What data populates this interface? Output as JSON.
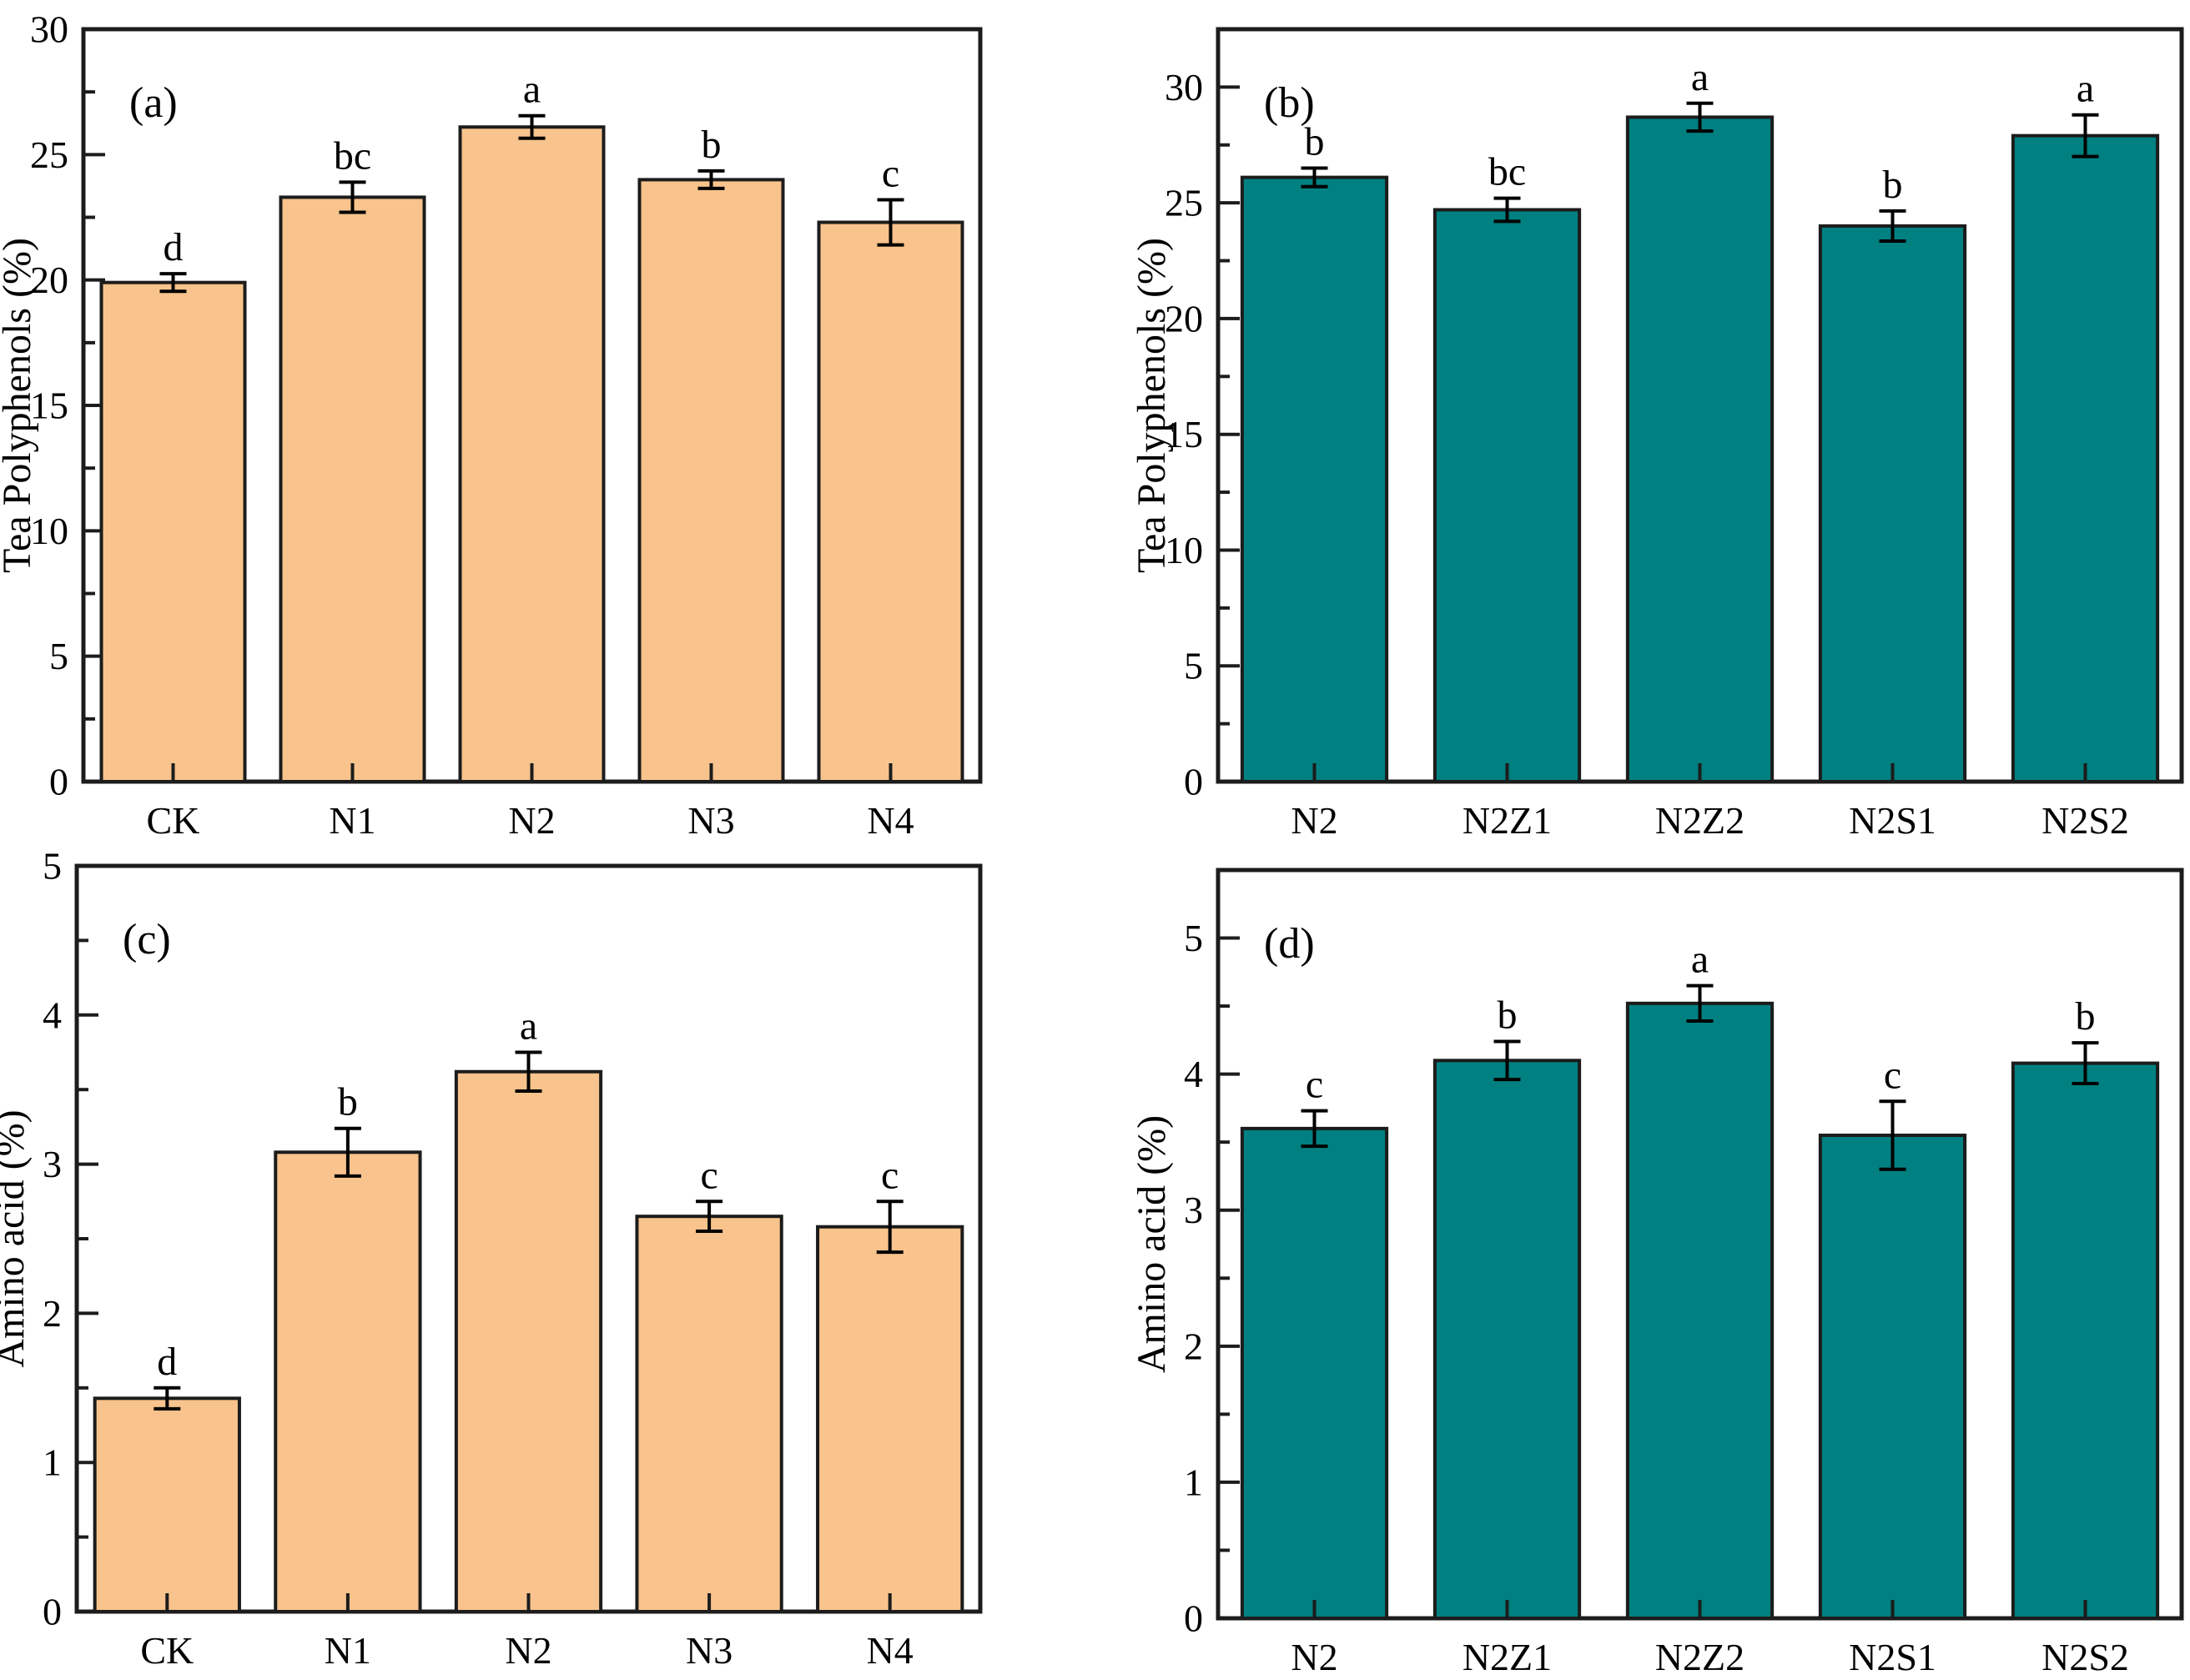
{
  "figure": {
    "background": "#ffffff",
    "text_color": "#000000",
    "frame_color": "#1c1c1c",
    "orange_fill": "#F8C38C",
    "teal_fill": "#008080"
  },
  "chart_data": [
    {
      "id": "a",
      "type": "bar",
      "panel_label": "(a)",
      "ylabel": "Tea Polyphenols (%)",
      "xlabel": "",
      "categories": [
        "CK",
        "N1",
        "N2",
        "N3",
        "N4"
      ],
      "values": [
        19.9,
        23.3,
        26.1,
        24.0,
        22.3
      ],
      "errors": [
        0.35,
        0.6,
        0.45,
        0.35,
        0.9
      ],
      "sig_letters": [
        "d",
        "bc",
        "a",
        "b",
        "c"
      ],
      "bar_color": "#F8C38C",
      "edge_color": "#1c1c1c",
      "ylim": [
        0,
        30
      ],
      "ytick_step": 5,
      "yminor_step": 2.5,
      "ytick_labels": [
        "0",
        "5",
        "10",
        "15",
        "20",
        "25",
        "30"
      ],
      "grid": false,
      "legend": null
    },
    {
      "id": "b",
      "type": "bar",
      "panel_label": "(b)",
      "ylabel": "Tea Polyphenols (%)",
      "xlabel": "",
      "categories": [
        "N2",
        "N2Z1",
        "N2Z2",
        "N2S1",
        "N2S2"
      ],
      "values": [
        26.1,
        24.7,
        28.7,
        24.0,
        27.9
      ],
      "errors": [
        0.4,
        0.5,
        0.6,
        0.65,
        0.9
      ],
      "sig_letters": [
        "b",
        "bc",
        "a",
        "b",
        "a"
      ],
      "bar_color": "#008080",
      "edge_color": "#1c1c1c",
      "ylim": [
        0,
        32.5
      ],
      "ytick_step": 5,
      "yminor_step": 2.5,
      "ytick_labels": [
        "0",
        "5",
        "10",
        "15",
        "20",
        "25",
        "30"
      ],
      "grid": false,
      "legend": null
    },
    {
      "id": "c",
      "type": "bar",
      "panel_label": "(c)",
      "ylabel": "Amino acid (%)",
      "xlabel": "",
      "categories": [
        "CK",
        "N1",
        "N2",
        "N3",
        "N4"
      ],
      "values": [
        1.43,
        3.08,
        3.62,
        2.65,
        2.58
      ],
      "errors": [
        0.07,
        0.16,
        0.13,
        0.1,
        0.17
      ],
      "sig_letters": [
        "d",
        "b",
        "a",
        "c",
        "c"
      ],
      "bar_color": "#F8C38C",
      "edge_color": "#1c1c1c",
      "ylim": [
        0,
        5
      ],
      "ytick_step": 1,
      "yminor_step": 0.5,
      "ytick_labels": [
        "0",
        "1",
        "2",
        "3",
        "4",
        "5"
      ],
      "grid": false,
      "legend": null
    },
    {
      "id": "d",
      "type": "bar",
      "panel_label": "(d)",
      "ylabel": "Amino acid (%)",
      "xlabel": "",
      "categories": [
        "N2",
        "N2Z1",
        "N2Z2",
        "N2S1",
        "N2S2"
      ],
      "values": [
        3.6,
        4.1,
        4.52,
        3.55,
        4.08
      ],
      "errors": [
        0.13,
        0.14,
        0.13,
        0.25,
        0.15
      ],
      "sig_letters": [
        "c",
        "b",
        "a",
        "c",
        "b"
      ],
      "bar_color": "#008080",
      "edge_color": "#1c1c1c",
      "ylim": [
        0,
        5.5
      ],
      "ytick_step": 1,
      "yminor_step": 0.5,
      "ytick_labels": [
        "0",
        "1",
        "2",
        "3",
        "4",
        "5"
      ],
      "grid": false,
      "legend": null
    }
  ]
}
